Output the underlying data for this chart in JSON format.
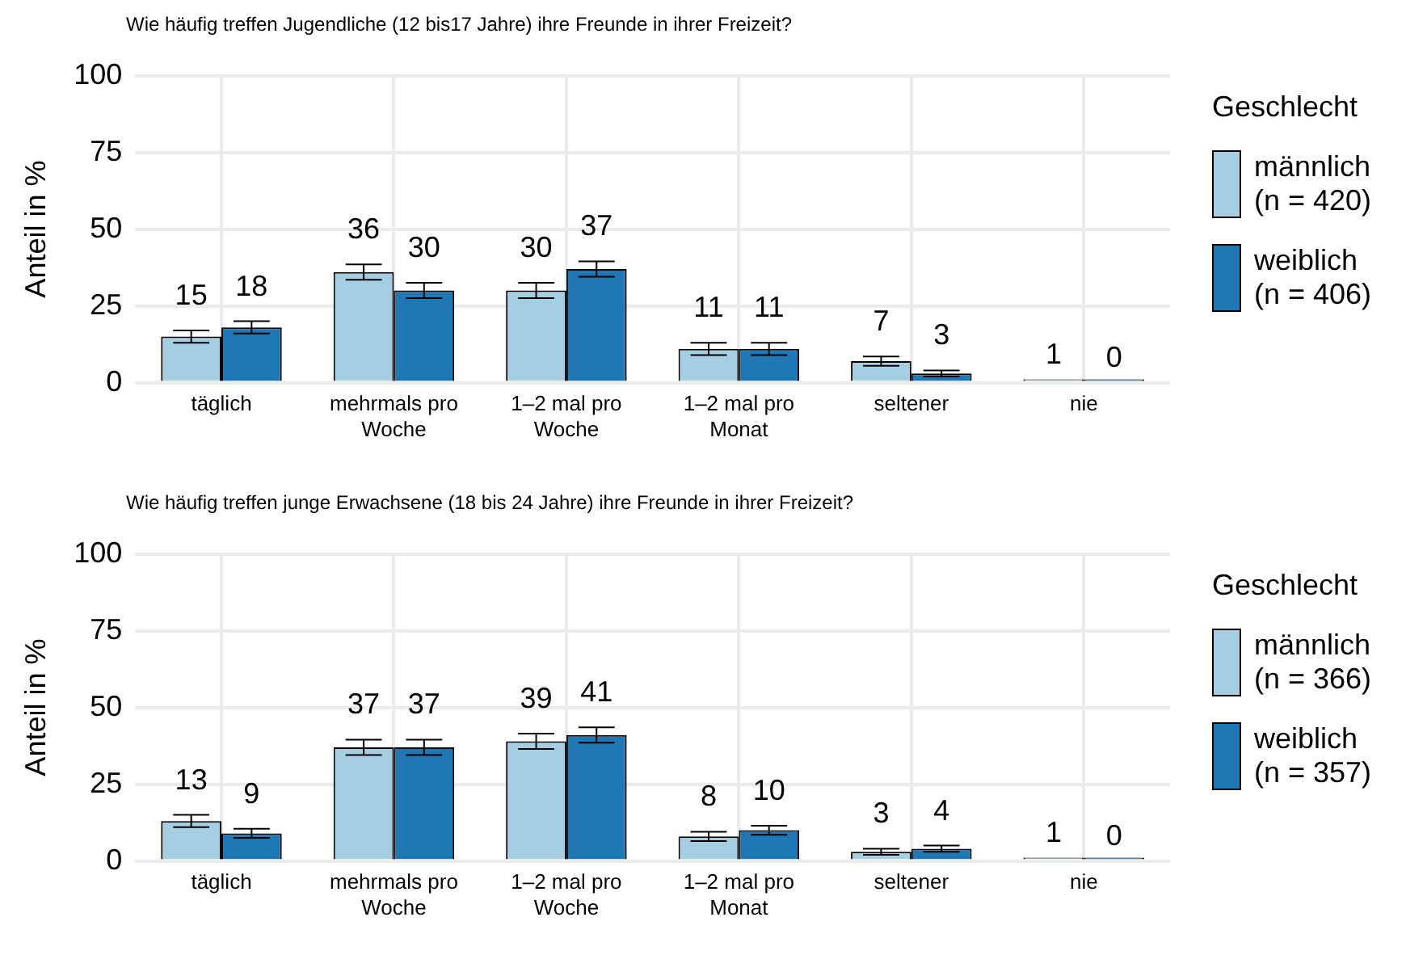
{
  "chart_data": [
    {
      "type": "bar",
      "title": "Wie häufig treffen Jugendliche (12 bis17 Jahre) ihre Freunde in ihrer Freizeit?",
      "ylabel": "Anteil in %",
      "legend_title": "Geschlecht",
      "categories": [
        "täglich",
        "mehrmals pro Woche",
        "1–2 mal pro Woche",
        "1–2 mal pro Monat",
        "seltener",
        "nie"
      ],
      "series": [
        {
          "name": "männlich (n = 420)",
          "color": "#a6cee3",
          "values": [
            15,
            36,
            30,
            11,
            7,
            1
          ],
          "errors": [
            2,
            2.5,
            2.5,
            2,
            1.5,
            null
          ]
        },
        {
          "name": "weiblich (n = 406)",
          "color": "#1f78b4",
          "values": [
            18,
            30,
            37,
            11,
            3,
            0
          ],
          "errors": [
            2,
            2.5,
            2.5,
            2,
            1,
            null
          ]
        }
      ],
      "ylim": [
        0,
        100
      ],
      "yticks": [
        0,
        25,
        50,
        75,
        100
      ],
      "grid": true,
      "legend": "right",
      "data_labels": true
    },
    {
      "type": "bar",
      "title": "Wie häufig treffen junge Erwachsene (18 bis 24 Jahre) ihre Freunde in ihrer Freizeit?",
      "ylabel": "Anteil in %",
      "legend_title": "Geschlecht",
      "categories": [
        "täglich",
        "mehrmals pro Woche",
        "1–2 mal pro Woche",
        "1–2 mal pro Monat",
        "seltener",
        "nie"
      ],
      "series": [
        {
          "name": "männlich (n = 366)",
          "color": "#a6cee3",
          "values": [
            13,
            37,
            39,
            8,
            3,
            1
          ],
          "errors": [
            2,
            2.5,
            2.5,
            1.5,
            1,
            null
          ]
        },
        {
          "name": "weiblich (n = 357)",
          "color": "#1f78b4",
          "values": [
            9,
            37,
            41,
            10,
            4,
            0
          ],
          "errors": [
            1.5,
            2.5,
            2.5,
            1.5,
            1,
            null
          ]
        }
      ],
      "ylim": [
        0,
        100
      ],
      "yticks": [
        0,
        25,
        50,
        75,
        100
      ],
      "grid": true,
      "legend": "right",
      "data_labels": true
    }
  ]
}
